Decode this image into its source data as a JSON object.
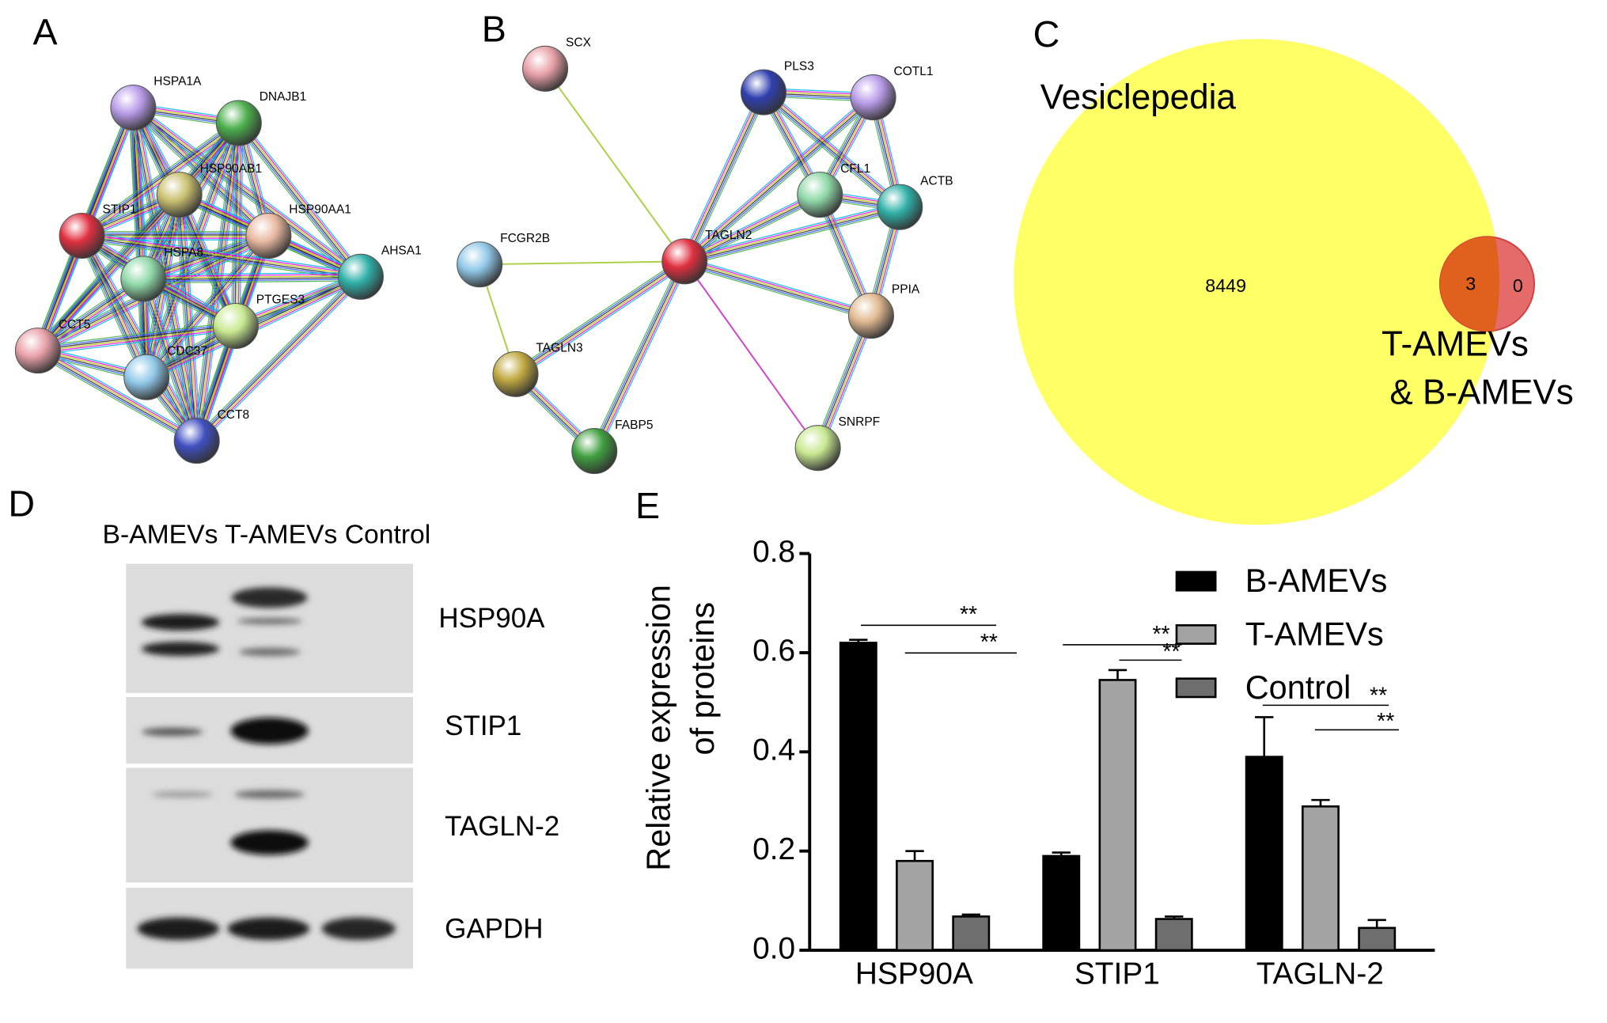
{
  "panels": {
    "labels": [
      "A",
      "B",
      "C",
      "D",
      "E"
    ]
  },
  "network_a": {
    "nodes": [
      "HSPA1A",
      "DNAJB1",
      "HSP90AB1",
      "HSP90AA1",
      "STIP1",
      "HSPA8",
      "PTGES3",
      "AHSA1",
      "CCT5",
      "CDC37",
      "CCT8"
    ]
  },
  "network_b": {
    "nodes": [
      "SCX",
      "PLS3",
      "COTL1",
      "CFL1",
      "ACTB",
      "FCGR2B",
      "TAGLN2",
      "PPIA",
      "TAGLN3",
      "FABP5",
      "SNRPF"
    ]
  },
  "venn": {
    "set_a": "Vesiclepedia",
    "set_b": [
      "T-AMEVs",
      "& B-AMEVs"
    ],
    "only_a": 8449,
    "both": 3,
    "only_b": 0
  },
  "western_blot": {
    "lanes_header": "B-AMEVs T-AMEVs Control",
    "rows": [
      "HSP90A",
      "STIP1",
      "TAGLN-2",
      "GAPDH"
    ]
  },
  "chart_data": {
    "type": "bar",
    "y_label": [
      "Relative expression",
      "of proteins"
    ],
    "categories": [
      "HSP90A",
      "STIP1",
      "TAGLN-2"
    ],
    "series": [
      {
        "name": "B-AMEVs",
        "color": "#000000",
        "values": [
          0.62,
          0.19,
          0.39
        ],
        "errors": [
          0.006,
          0.007,
          0.08
        ]
      },
      {
        "name": "T-AMEVs",
        "color": "#a3a3a3",
        "values": [
          0.18,
          0.545,
          0.29
        ],
        "errors": [
          0.02,
          0.02,
          0.013
        ]
      },
      {
        "name": "Control",
        "color": "#6e6e6e",
        "values": [
          0.068,
          0.063,
          0.045
        ],
        "errors": [
          0.004,
          0.005,
          0.016
        ]
      }
    ],
    "ylim": [
      0,
      0.8
    ],
    "yticks": [
      {
        "value": 0,
        "label": "0.0"
      },
      0.2,
      0.4,
      0.6,
      0.8
    ],
    "significance": [
      "**",
      "**",
      "**",
      "**",
      "**",
      "**"
    ]
  }
}
